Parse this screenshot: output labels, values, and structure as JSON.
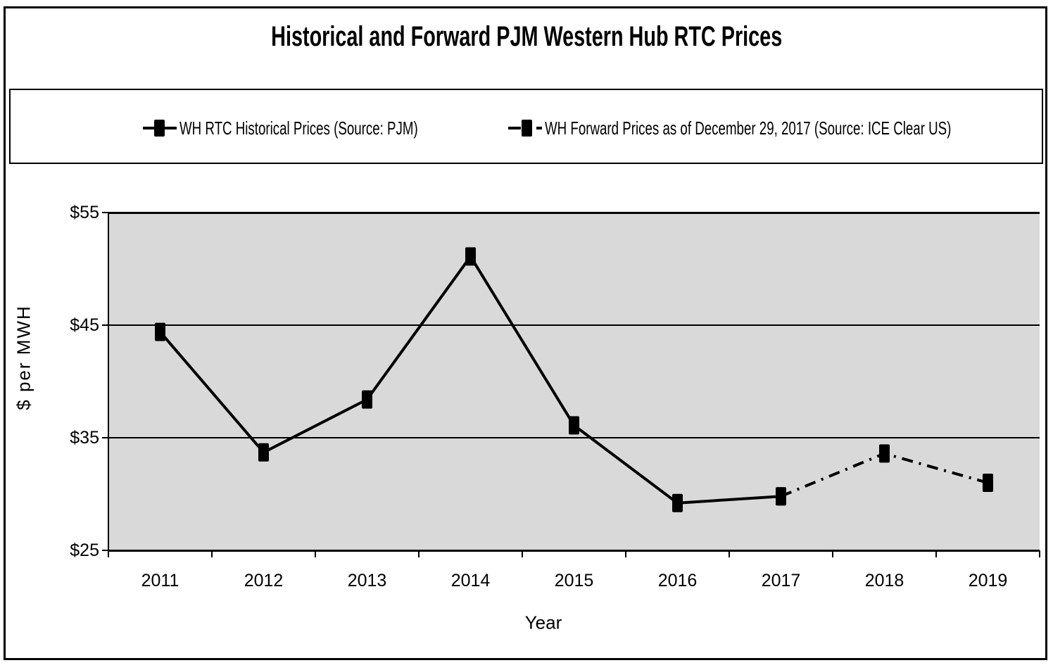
{
  "title": "Historical and Forward PJM Western Hub RTC Prices",
  "legend": {
    "items": [
      {
        "label": "WH RTC Historical Prices (Source: PJM)",
        "style": "solid"
      },
      {
        "label": "WH Forward Prices as of December 29, 2017 (Source: ICE Clear US)",
        "style": "dash-dot"
      }
    ]
  },
  "chart_data": {
    "type": "line",
    "title": "Historical and Forward PJM Western Hub RTC Prices",
    "xlabel": "Year",
    "ylabel": "$ per MWH",
    "categories": [
      2011,
      2012,
      2013,
      2014,
      2015,
      2016,
      2017,
      2018,
      2019
    ],
    "ylim": [
      25,
      55
    ],
    "y_ticks": [
      {
        "label": "$25",
        "value": 25
      },
      {
        "label": "$35",
        "value": 35
      },
      {
        "label": "$45",
        "value": 45
      },
      {
        "label": "$55",
        "value": 55
      }
    ],
    "grid": true,
    "legend_position": "top",
    "plot_bg_color": "#D9D9D9",
    "line_color": "#000000",
    "marker": "square",
    "series": [
      {
        "name": "WH RTC Historical Prices (Source: PJM)",
        "line_style": "solid",
        "x": [
          2011,
          2012,
          2013,
          2014,
          2015,
          2016,
          2017
        ],
        "values": [
          44.4,
          33.7,
          38.4,
          51.1,
          36.1,
          29.2,
          29.8
        ]
      },
      {
        "name": "WH Forward Prices as of December 29, 2017 (Source: ICE Clear US)",
        "line_style": "dash-dot",
        "x": [
          2017,
          2018,
          2019
        ],
        "values": [
          29.8,
          33.6,
          31.0
        ]
      }
    ]
  }
}
